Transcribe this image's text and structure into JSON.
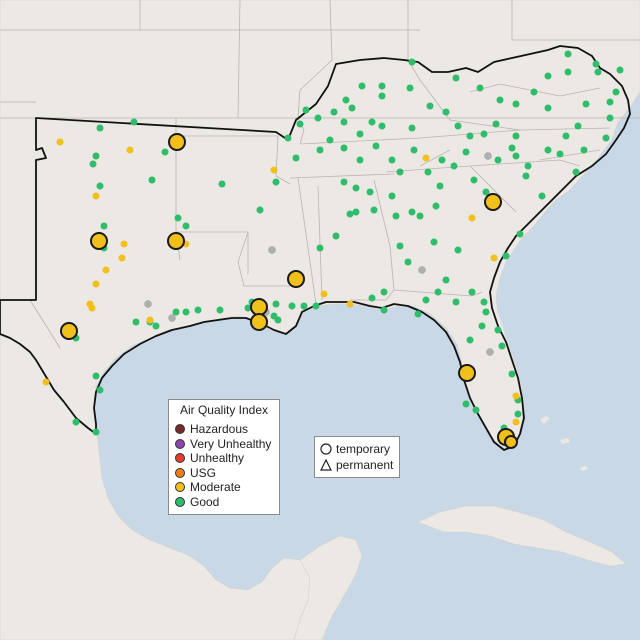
{
  "map": {
    "colors": {
      "water": "#c9d8e6",
      "land": "#ece8e4",
      "boundary": "#b9b4b0",
      "region_outline": "#111111",
      "good": "#2ebd6b",
      "moderate": "#f2c01b",
      "usg": "#ef7d1a",
      "unhealthy": "#e53a2d",
      "very_unhealthy": "#8e44ad",
      "hazardous": "#7a2a2a",
      "no_data": "#b0b0b0"
    },
    "legend_aqi": {
      "title": "Air Quality Index",
      "items": [
        {
          "label": "Hazardous",
          "color": "#7a2a2a"
        },
        {
          "label": "Very Unhealthy",
          "color": "#8e44ad"
        },
        {
          "label": "Unhealthy",
          "color": "#e53a2d"
        },
        {
          "label": "USG",
          "color": "#ef7d1a"
        },
        {
          "label": "Moderate",
          "color": "#f2c01b"
        },
        {
          "label": "Good",
          "color": "#2ebd6b"
        }
      ]
    },
    "legend_type": {
      "items": [
        {
          "label": "temporary",
          "shape": "circle"
        },
        {
          "label": "permanent",
          "shape": "triangle"
        }
      ]
    }
  }
}
